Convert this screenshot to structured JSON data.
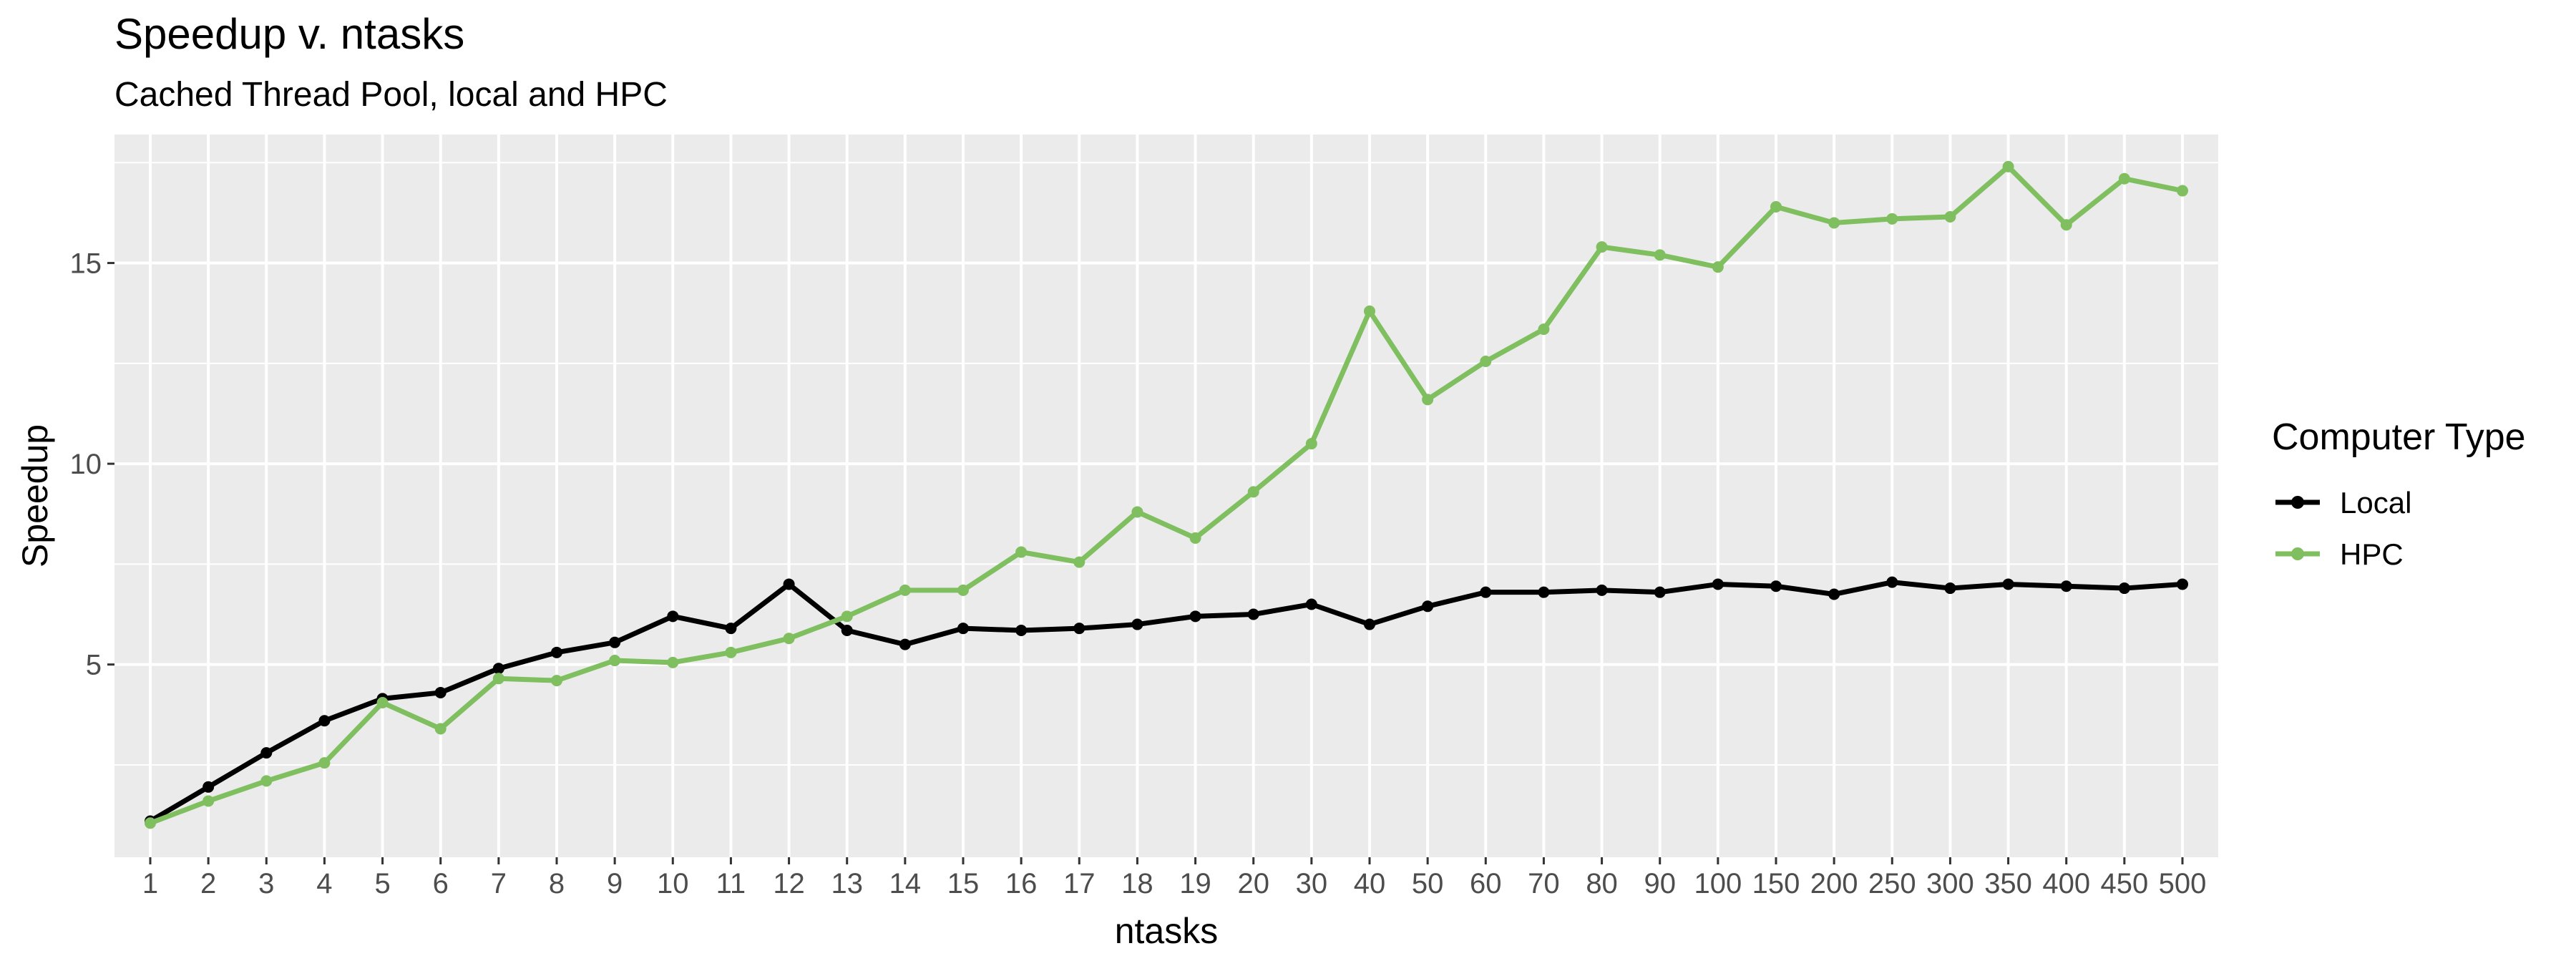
{
  "chart_data": {
    "type": "line",
    "title": "Speedup v. ntasks",
    "subtitle": "Cached Thread Pool, local and HPC",
    "xlabel": "ntasks",
    "ylabel": "Speedup",
    "categories": [
      "1",
      "2",
      "3",
      "4",
      "5",
      "6",
      "7",
      "8",
      "9",
      "10",
      "11",
      "12",
      "13",
      "14",
      "15",
      "16",
      "17",
      "18",
      "19",
      "20",
      "30",
      "40",
      "50",
      "60",
      "70",
      "80",
      "90",
      "100",
      "150",
      "200",
      "250",
      "300",
      "350",
      "400",
      "450",
      "500"
    ],
    "ylim": [
      0.2,
      18.2
    ],
    "yticks": [
      5,
      10,
      15
    ],
    "grid": true,
    "legend": {
      "title": "Computer Type",
      "position": "right"
    },
    "series": [
      {
        "name": "Local",
        "color": "#000000",
        "values": [
          1.1,
          1.95,
          2.8,
          3.6,
          4.15,
          4.3,
          4.9,
          5.3,
          5.55,
          6.2,
          5.9,
          7.0,
          5.85,
          5.5,
          5.9,
          5.85,
          5.9,
          6.0,
          6.2,
          6.25,
          6.5,
          6.0,
          6.45,
          6.8,
          6.8,
          6.85,
          6.8,
          7.0,
          6.95,
          6.75,
          7.05,
          6.9,
          7.0,
          6.95,
          6.9,
          7.0
        ]
      },
      {
        "name": "HPC",
        "color": "#7fbf5f",
        "values": [
          1.05,
          1.6,
          2.1,
          2.55,
          4.05,
          3.4,
          4.65,
          4.6,
          5.1,
          5.05,
          5.3,
          5.65,
          6.2,
          6.85,
          6.85,
          7.8,
          7.55,
          8.8,
          8.15,
          9.3,
          10.5,
          13.8,
          11.6,
          12.55,
          13.35,
          15.4,
          15.2,
          14.9,
          16.4,
          16.0,
          16.1,
          16.15,
          17.4,
          15.95,
          17.1,
          16.8
        ]
      }
    ]
  }
}
